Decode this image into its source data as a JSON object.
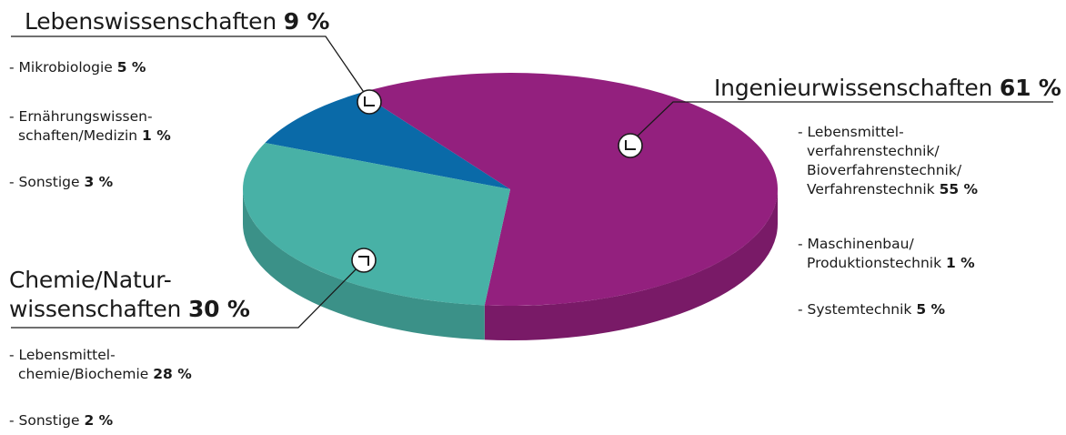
{
  "chart_data": {
    "type": "pie",
    "slices": [
      {
        "name": "Ingenieurwissenschaften",
        "value": 61,
        "pct": "61 %",
        "color": "#93207e",
        "items": [
          {
            "text": "- Lebensmittel-\nverfahrenstechnik/\nBioverfahrenstechnik/\nVerfahrenstechnik",
            "pct": "55 %"
          },
          {
            "text": "- Maschinenbau/\nProduktionstechnik",
            "pct": "1 %"
          },
          {
            "text": "- Systemtechnik",
            "pct": "5 %"
          }
        ]
      },
      {
        "name": "Chemie/Natur-\nwissenschaften",
        "value": 30,
        "pct": "30 %",
        "color": "#48b1a6",
        "items": [
          {
            "text": "- Lebensmittel-\nchemie/Biochemie",
            "pct": "28 %"
          },
          {
            "text": "- Sonstige",
            "pct": "2 %"
          }
        ]
      },
      {
        "name": "Lebenswissenschaften",
        "value": 9,
        "pct": "9 %",
        "color": "#0a6aa8",
        "items": [
          {
            "text": "- Mikrobiologie",
            "pct": "5 %"
          },
          {
            "text": "- Ernährungswissen-\nschaften/Medizin",
            "pct": "1 %"
          },
          {
            "text": "- Sonstige",
            "pct": "3 %"
          }
        ]
      }
    ]
  }
}
